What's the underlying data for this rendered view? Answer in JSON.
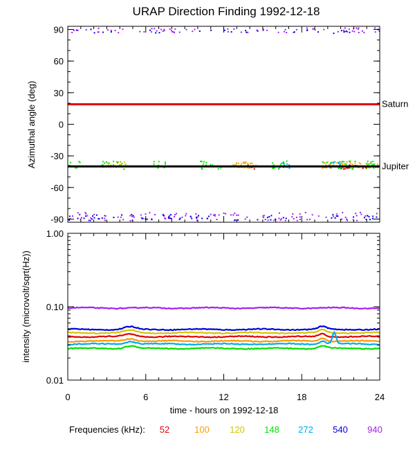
{
  "chart_data": [
    {
      "type": "scatter",
      "title": "URAP Direction Finding  1992-12-18",
      "ylabel": "Azimuthal angle (deg)",
      "xlim": [
        0,
        24
      ],
      "ylim": [
        -93,
        93
      ],
      "yticks": [
        "90",
        "60",
        "30",
        "0",
        "-30",
        "-60",
        "-90"
      ],
      "reference_lines": [
        {
          "name": "Saturn",
          "y": 19,
          "color": "#e00000"
        },
        {
          "name": "Jupiter",
          "y": -40,
          "color": "#000000"
        }
      ],
      "scatter_groups": [
        {
          "frequency": "940",
          "color": "#a020f0",
          "center": 90,
          "spread": 2.5,
          "x_ranges": [
            [
              0,
              24
            ]
          ],
          "count": 70
        },
        {
          "frequency": "540",
          "color": "#0000dd",
          "center": 89,
          "spread": 2.0,
          "x_ranges": [
            [
              0,
              24
            ]
          ],
          "count": 25
        },
        {
          "frequency": "940",
          "color": "#a020f0",
          "center": -87,
          "spread": 4.0,
          "x_ranges": [
            [
              0,
              24
            ]
          ],
          "count": 110
        },
        {
          "frequency": "540",
          "color": "#0000dd",
          "center": -88,
          "spread": 3.0,
          "x_ranges": [
            [
              0,
              24
            ]
          ],
          "count": 60
        },
        {
          "frequency": "148",
          "color": "#00e000",
          "center": -38,
          "spread": 4.0,
          "x_ranges": [
            [
              0,
              1
            ],
            [
              2.5,
              4.5
            ],
            [
              6.5,
              7.5
            ],
            [
              10,
              12
            ],
            [
              15.5,
              17
            ],
            [
              19.5,
              24
            ]
          ],
          "count": 110
        },
        {
          "frequency": "100",
          "color": "#ff9900",
          "center": -38,
          "spread": 3.0,
          "x_ranges": [
            [
              3,
              4.5
            ],
            [
              12.5,
              14
            ],
            [
              19.5,
              24
            ]
          ],
          "count": 55
        },
        {
          "frequency": "120",
          "color": "#d4c400",
          "center": -38,
          "spread": 3.0,
          "x_ranges": [
            [
              3,
              4.5
            ],
            [
              13,
              14.5
            ],
            [
              20,
              23
            ]
          ],
          "count": 35
        },
        {
          "frequency": "52",
          "color": "#e00000",
          "center": -40,
          "spread": 2.0,
          "x_ranges": [
            [
              13.5,
              15
            ],
            [
              21,
              23
            ]
          ],
          "count": 22
        },
        {
          "frequency": "272",
          "color": "#00aaee",
          "center": -38,
          "spread": 3.0,
          "x_ranges": [
            [
              16,
              17
            ],
            [
              20,
              21
            ]
          ],
          "count": 25
        }
      ]
    },
    {
      "type": "line",
      "ylabel": "intensity (microvolt/sqrt(Hz))",
      "xlabel": "time - hours on 1992-12-18",
      "x_ticks": [
        "0",
        "6",
        "12",
        "18",
        "24"
      ],
      "xlim": [
        0,
        24
      ],
      "yscale": "log",
      "ylim": [
        0.01,
        1.0
      ],
      "yticks": [
        {
          "value": 1.0,
          "label": "1.00"
        },
        {
          "value": 0.1,
          "label": "0.10"
        },
        {
          "value": 0.01,
          "label": "0.01"
        }
      ],
      "series": [
        {
          "name": "940",
          "color": "#a020f0",
          "level": 0.096
        },
        {
          "name": "540",
          "color": "#0000dd",
          "level": 0.049
        },
        {
          "name": "120",
          "color": "#d4c400",
          "level": 0.044
        },
        {
          "name": "52",
          "color": "#e00000",
          "level": 0.039
        },
        {
          "name": "100",
          "color": "#ff9900",
          "level": 0.034
        },
        {
          "name": "272",
          "color": "#00aaee",
          "level": 0.031
        },
        {
          "name": "148",
          "color": "#00e000",
          "level": 0.027
        }
      ]
    }
  ],
  "legend": {
    "label": "Frequencies (kHz):",
    "items": [
      {
        "label": "52",
        "color": "#e00000"
      },
      {
        "label": "100",
        "color": "#ff9900"
      },
      {
        "label": "120",
        "color": "#d4c400"
      },
      {
        "label": "148",
        "color": "#00e000"
      },
      {
        "label": "272",
        "color": "#00aaee"
      },
      {
        "label": "540",
        "color": "#0000dd"
      },
      {
        "label": "940",
        "color": "#a020f0"
      }
    ]
  }
}
